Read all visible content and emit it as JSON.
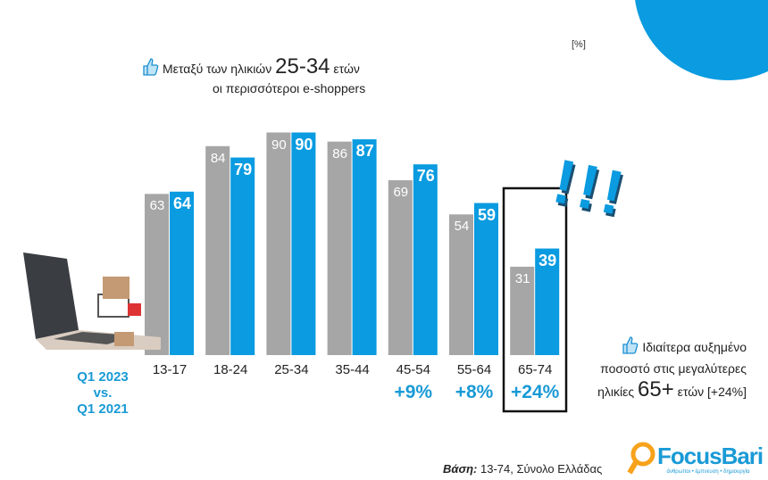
{
  "unit_label": "[%]",
  "callout_top": {
    "line1_pre": "Μεταξύ των ηλικιών",
    "line1_big": "25-34",
    "line1_post": "ετών",
    "line2": "οι περισσότεροι e-shoppers"
  },
  "callout_right": {
    "line1": "Ιδιαίτερα αυξημένο",
    "line2": "ποσοστό στις μεγαλύτερες",
    "line3_pre": "ηλικίες",
    "line3_big": "65+",
    "line3_post": "ετών [+24%]"
  },
  "comparison": {
    "line1": "Q1 2023",
    "line2": "vs.",
    "line3": "Q1 2021"
  },
  "exclamation": "!!!",
  "footer": {
    "base_label": "Βάση:",
    "base_text": "13-74, Σύνολο Ελλάδας"
  },
  "logo": {
    "name": "FocusBari",
    "tagline": "άνθρωποι • έμπνευση • δημιουργία"
  },
  "colors": {
    "q1_2021": "#a6a6a6",
    "q1_2023": "#0a9be0"
  },
  "chart_data": {
    "type": "bar",
    "categories": [
      "13-17",
      "18-24",
      "25-34",
      "35-44",
      "45-54",
      "55-64",
      "65-74"
    ],
    "series": [
      {
        "name": "Q1 2021",
        "values": [
          63,
          84,
          90,
          86,
          69,
          54,
          31
        ]
      },
      {
        "name": "Q1 2023",
        "values": [
          64,
          79,
          90,
          87,
          76,
          59,
          39
        ]
      }
    ],
    "changes": [
      "",
      "",
      "",
      "",
      "+9%",
      "+8%",
      "+24%"
    ],
    "highlight": "65-74",
    "ylabel": "[%]"
  }
}
